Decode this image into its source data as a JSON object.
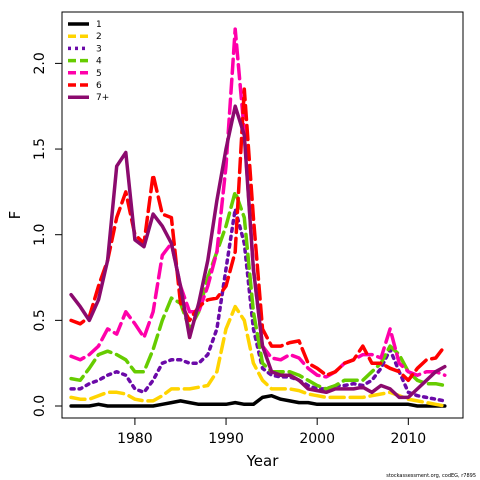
{
  "chart_data": {
    "type": "line",
    "xlabel": "Year",
    "ylabel": "F",
    "xlim": [
      1972,
      2016
    ],
    "ylim": [
      -0.07,
      2.3
    ],
    "xticks": [
      1980,
      1990,
      2000,
      2010
    ],
    "yticks": [
      0.0,
      0.5,
      1.0,
      1.5,
      2.0
    ],
    "ytick_labels": [
      "0.0",
      "0.5",
      "1.0",
      "1.5",
      "2.0"
    ],
    "grid": false,
    "legend_position": "top-left",
    "footnote": "stockassessment.org, codEG, r7895",
    "x": [
      1973,
      1974,
      1975,
      1976,
      1977,
      1978,
      1979,
      1980,
      1981,
      1982,
      1983,
      1984,
      1985,
      1986,
      1987,
      1988,
      1989,
      1990,
      1991,
      1992,
      1993,
      1994,
      1995,
      1996,
      1997,
      1998,
      1999,
      2000,
      2001,
      2002,
      2003,
      2004,
      2005,
      2006,
      2007,
      2008,
      2009,
      2010,
      2011,
      2012,
      2013,
      2014
    ],
    "series": [
      {
        "name": "1",
        "color": "#000000",
        "dash": "solid",
        "values": [
          0.0,
          0.0,
          0.0,
          0.01,
          0.0,
          0.0,
          0.0,
          0.0,
          0.0,
          0.0,
          0.01,
          0.02,
          0.03,
          0.02,
          0.01,
          0.01,
          0.01,
          0.01,
          0.02,
          0.01,
          0.01,
          0.05,
          0.06,
          0.04,
          0.03,
          0.02,
          0.02,
          0.01,
          0.01,
          0.01,
          0.01,
          0.01,
          0.01,
          0.01,
          0.01,
          0.01,
          0.01,
          0.01,
          0.0,
          0.0,
          0.0,
          0.0
        ]
      },
      {
        "name": "2",
        "color": "#FFD400",
        "dash": "dash",
        "values": [
          0.05,
          0.04,
          0.04,
          0.06,
          0.08,
          0.08,
          0.07,
          0.04,
          0.03,
          0.03,
          0.06,
          0.1,
          0.1,
          0.1,
          0.11,
          0.12,
          0.2,
          0.45,
          0.58,
          0.5,
          0.25,
          0.15,
          0.1,
          0.1,
          0.1,
          0.09,
          0.07,
          0.06,
          0.05,
          0.05,
          0.05,
          0.05,
          0.05,
          0.06,
          0.07,
          0.08,
          0.06,
          0.04,
          0.03,
          0.02,
          0.01,
          0.0
        ]
      },
      {
        "name": "3",
        "color": "#6B0AA8",
        "dash": "dot",
        "values": [
          0.1,
          0.1,
          0.13,
          0.15,
          0.18,
          0.2,
          0.18,
          0.1,
          0.08,
          0.15,
          0.25,
          0.27,
          0.27,
          0.25,
          0.25,
          0.3,
          0.45,
          0.8,
          1.15,
          0.95,
          0.45,
          0.22,
          0.18,
          0.17,
          0.17,
          0.15,
          0.12,
          0.1,
          0.1,
          0.12,
          0.12,
          0.13,
          0.12,
          0.15,
          0.22,
          0.33,
          0.2,
          0.08,
          0.06,
          0.05,
          0.04,
          0.03
        ]
      },
      {
        "name": "4",
        "color": "#66CC00",
        "dash": "dash",
        "values": [
          0.16,
          0.15,
          0.22,
          0.3,
          0.32,
          0.3,
          0.27,
          0.2,
          0.2,
          0.33,
          0.5,
          0.63,
          0.6,
          0.45,
          0.55,
          0.75,
          0.9,
          1.05,
          1.25,
          1.1,
          0.55,
          0.25,
          0.2,
          0.2,
          0.2,
          0.18,
          0.15,
          0.12,
          0.1,
          0.12,
          0.15,
          0.15,
          0.15,
          0.2,
          0.25,
          0.35,
          0.3,
          0.2,
          0.15,
          0.13,
          0.13,
          0.12
        ]
      },
      {
        "name": "5",
        "color": "#FF00AA",
        "dash": "dash",
        "values": [
          0.29,
          0.27,
          0.3,
          0.35,
          0.45,
          0.42,
          0.55,
          0.48,
          0.4,
          0.55,
          0.88,
          0.95,
          0.7,
          0.55,
          0.55,
          0.7,
          0.9,
          1.4,
          2.2,
          1.6,
          0.8,
          0.35,
          0.28,
          0.27,
          0.3,
          0.28,
          0.22,
          0.18,
          0.17,
          0.2,
          0.25,
          0.27,
          0.3,
          0.3,
          0.28,
          0.45,
          0.25,
          0.2,
          0.18,
          0.2,
          0.2,
          0.18
        ]
      },
      {
        "name": "6",
        "color": "#FF0000",
        "dash": "dash",
        "values": [
          0.5,
          0.48,
          0.52,
          0.7,
          0.85,
          1.1,
          1.25,
          1.0,
          0.95,
          1.35,
          1.12,
          1.1,
          0.6,
          0.5,
          0.58,
          0.62,
          0.63,
          0.7,
          0.9,
          1.85,
          1.1,
          0.45,
          0.35,
          0.35,
          0.37,
          0.38,
          0.25,
          0.22,
          0.18,
          0.2,
          0.25,
          0.27,
          0.35,
          0.25,
          0.25,
          0.22,
          0.2,
          0.15,
          0.22,
          0.27,
          0.28,
          0.35
        ]
      },
      {
        "name": "7+",
        "color": "#8B0A6E",
        "dash": "solid",
        "values": [
          0.65,
          0.58,
          0.5,
          0.62,
          0.85,
          1.4,
          1.48,
          0.97,
          0.93,
          1.12,
          1.05,
          0.95,
          0.7,
          0.4,
          0.6,
          0.85,
          1.2,
          1.5,
          1.75,
          1.58,
          0.8,
          0.35,
          0.2,
          0.18,
          0.18,
          0.15,
          0.1,
          0.09,
          0.08,
          0.1,
          0.1,
          0.1,
          0.11,
          0.08,
          0.12,
          0.1,
          0.05,
          0.05,
          0.1,
          0.15,
          0.2,
          0.23
        ]
      }
    ]
  }
}
